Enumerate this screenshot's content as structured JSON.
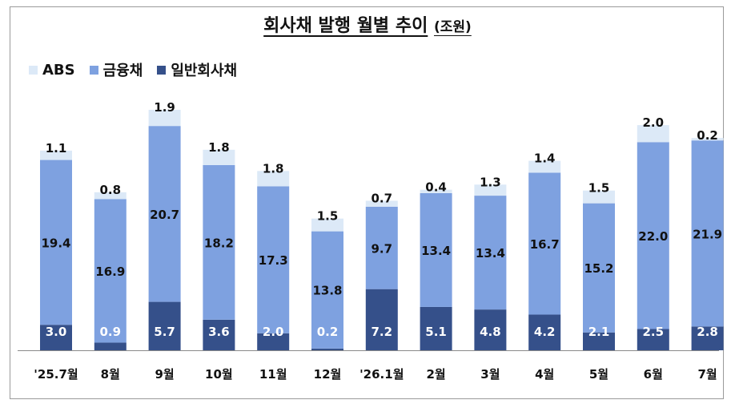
{
  "title": "회사채 발행 월별 추이",
  "unit": "(조원)",
  "colors": {
    "abs": "#dce9f7",
    "fin": "#7ea1e0",
    "gen": "#35508a",
    "text_dark": "#111111",
    "text_light": "#ffffff"
  },
  "legend": [
    {
      "key": "abs",
      "label": "ABS"
    },
    {
      "key": "fin",
      "label": "금융채"
    },
    {
      "key": "gen",
      "label": "일반회사채"
    }
  ],
  "chart_data": {
    "type": "bar",
    "stacked": true,
    "categories": [
      "'25.7월",
      "8월",
      "9월",
      "10월",
      "11월",
      "12월",
      "'26.1월",
      "2월",
      "3월",
      "4월",
      "5월",
      "6월",
      "7월"
    ],
    "series": [
      {
        "name": "일반회사채",
        "key": "gen",
        "values": [
          3.0,
          0.9,
          5.7,
          3.6,
          2.0,
          0.2,
          7.2,
          5.1,
          4.8,
          4.2,
          2.1,
          2.5,
          2.8
        ],
        "labels": [
          "3.0",
          "0.9",
          "5.7",
          "3.6",
          "2.0",
          "0.2",
          "7.2",
          "5.1",
          "4.8",
          "4.2",
          "2.1",
          "2.5",
          "2.8"
        ]
      },
      {
        "name": "금융채",
        "key": "fin",
        "values": [
          19.4,
          16.9,
          20.7,
          18.2,
          17.3,
          13.8,
          9.7,
          13.4,
          13.4,
          16.7,
          15.2,
          22.0,
          21.9
        ],
        "labels": [
          "19.4",
          "16.9",
          "20.7",
          "18.2",
          "17.3",
          "13.8",
          "9.7",
          "13.4",
          "13.4",
          "16.7",
          "15.2",
          "22.0",
          "21.9"
        ]
      },
      {
        "name": "ABS",
        "key": "abs",
        "values": [
          1.1,
          0.8,
          1.9,
          1.8,
          1.8,
          1.5,
          0.7,
          0.4,
          1.3,
          1.4,
          1.5,
          2.0,
          0.2
        ],
        "labels": [
          "1.1",
          "0.8",
          "1.9",
          "1.8",
          "1.8",
          "1.5",
          "0.7",
          "0.4",
          "1.3",
          "1.4",
          "1.5",
          "2.0",
          "0.2"
        ]
      }
    ],
    "light_label_categories": [
      "8월",
      "12월"
    ],
    "ylim": [
      0,
      30
    ],
    "grid": false,
    "legend_position": "top-left"
  }
}
